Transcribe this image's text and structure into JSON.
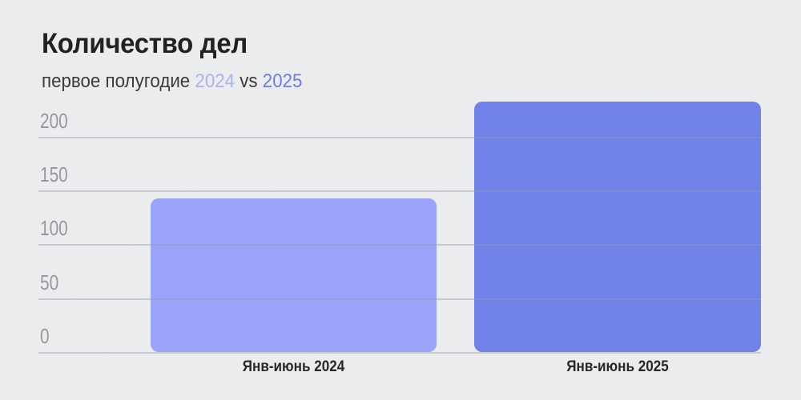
{
  "header": {
    "title": "Количество дел",
    "subtitle": {
      "prefix": "первое полугодие ",
      "year_left": "2024",
      "separator": " vs ",
      "year_right": "2025"
    }
  },
  "chart_data": {
    "type": "bar",
    "title": "Количество дел",
    "subtitle": "первое полугодие 2024 vs 2025",
    "categories": [
      "Янв-июнь 2024",
      "Янв-июнь 2025"
    ],
    "values": [
      143,
      233
    ],
    "bar_colors": [
      "#9aa5fa",
      "#7081e9"
    ],
    "y_ticks": [
      "0",
      "50",
      "100",
      "150",
      "200"
    ],
    "y_tick_values": [
      0,
      50,
      100,
      150,
      200
    ],
    "ylim": [
      0,
      238
    ],
    "grid": true,
    "gridlines_over_bars": true,
    "legend": "none",
    "xlabel": "",
    "ylabel": ""
  },
  "colors": {
    "background": "#ecedee",
    "title": "#202020",
    "subtitle": "#3a3a3a",
    "accent_2024": "#a9b2f3",
    "accent_2025": "#6c7cea",
    "bar_2024": "#9aa5fa",
    "bar_2025": "#7081e9",
    "tick_label": "#98989c",
    "x_label": "#262626",
    "gridline": "rgba(150,152,162,0.42)"
  }
}
